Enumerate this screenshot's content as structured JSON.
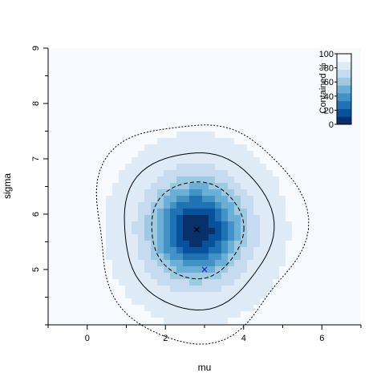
{
  "chart_data": {
    "type": "heatmap",
    "xlabel": "mu",
    "ylabel": "sigma",
    "xlim": [
      -1,
      7
    ],
    "ylim": [
      4.0,
      9.0
    ],
    "x_ticks": [
      0,
      2,
      4,
      6
    ],
    "y_ticks": [
      5,
      6,
      7,
      8,
      9
    ],
    "x_tick_labels": [
      "0",
      "2",
      "4",
      "6"
    ],
    "y_tick_labels": [
      "5",
      "6",
      "7",
      "8",
      "9"
    ],
    "peak": {
      "mu": 2.8,
      "sigma": 5.72
    },
    "true_value": {
      "mu": 3.0,
      "sigma": 5.0
    },
    "contour_levels_percent": [
      68,
      95
    ],
    "outer_dotted_contour_percent": 99.7,
    "colorbar": {
      "label": "Contained %",
      "ticks": [
        0,
        20,
        40,
        60,
        80,
        100
      ],
      "tick_labels": [
        "0",
        "20",
        "40",
        "60",
        "80",
        "100"
      ],
      "placement": "top-right"
    },
    "colors": {
      "dark": "#08306b",
      "light": "#f7fbff",
      "peak_marker": "#000000",
      "true_marker": "#1f1fd0"
    }
  }
}
